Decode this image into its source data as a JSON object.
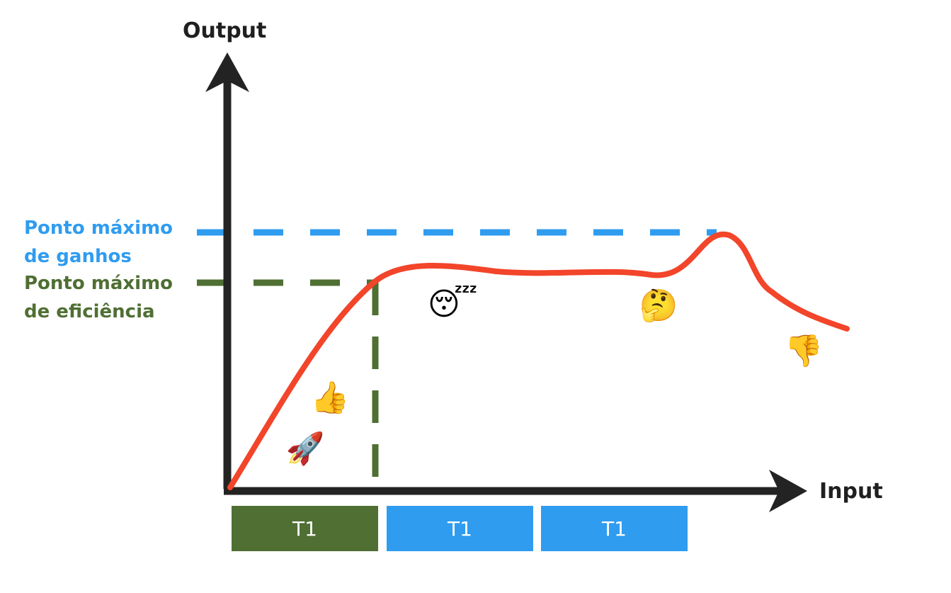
{
  "axes": {
    "y_label": "Output",
    "x_label": "Input"
  },
  "levels": {
    "max_gains": {
      "line1": "Ponto máximo",
      "line2": "de ganhos",
      "color": "#2f9cf0"
    },
    "max_efficiency": {
      "line1": "Ponto máximo",
      "line2": "de eficiência",
      "color": "#4f6f33"
    }
  },
  "curve": {
    "color": "#f2452a"
  },
  "emojis": [
    {
      "name": "rocket-icon",
      "glyph": "🚀"
    },
    {
      "name": "thumbs-up-icon",
      "glyph": "👍"
    },
    {
      "name": "sleeping-face-icon",
      "glyph": "😴"
    },
    {
      "name": "thinking-face-icon",
      "glyph": "🤔"
    },
    {
      "name": "thumbs-down-icon",
      "glyph": "👎"
    }
  ],
  "periods": [
    {
      "label": "T1",
      "color": "#4f6f33"
    },
    {
      "label": "T1",
      "color": "#2f9cf0"
    },
    {
      "label": "T1",
      "color": "#2f9cf0"
    }
  ]
}
